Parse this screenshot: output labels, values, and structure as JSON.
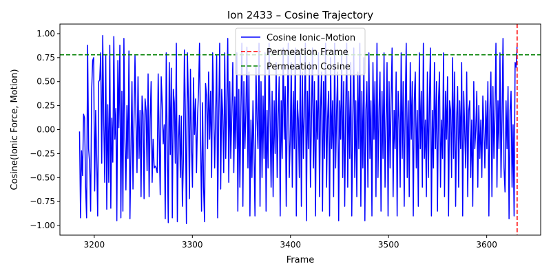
{
  "chart_data": {
    "type": "line",
    "title": "Ion 2433 – Cosine Trajectory",
    "xlabel": "Frame",
    "ylabel": "Cosine(Ionic Force, Motion)",
    "xlim": [
      3165,
      3655
    ],
    "ylim": [
      -1.1,
      1.1
    ],
    "x_ticks": [
      3200,
      3300,
      3400,
      3500,
      3600
    ],
    "y_ticks": [
      -1.0,
      -0.75,
      -0.5,
      -0.25,
      0.0,
      0.25,
      0.5,
      0.75,
      1.0
    ],
    "x_tick_labels": [
      "3200",
      "3300",
      "3400",
      "3500",
      "3600"
    ],
    "y_tick_labels": [
      "−1.00",
      "−0.75",
      "−0.50",
      "−0.25",
      "0.00",
      "0.25",
      "0.50",
      "0.75",
      "1.00"
    ],
    "grid": false,
    "legend_position": "upper center",
    "series": [
      {
        "name": "Cosine Ionic–Motion",
        "color": "#0000ff",
        "style": "solid",
        "x_start": 3185,
        "x_end": 3631,
        "values": [
          -0.02,
          -0.92,
          -0.22,
          -0.48,
          0.16,
          0.12,
          -0.6,
          -0.92,
          0.88,
          -0.2,
          -0.35,
          -0.85,
          0.4,
          0.72,
          0.75,
          -0.64,
          0.2,
          -0.3,
          -0.9,
          0.5,
          0.52,
          0.8,
          -0.35,
          0.98,
          0.1,
          -0.55,
          0.78,
          -0.83,
          0.26,
          -0.55,
          0.88,
          -0.82,
          0.12,
          -0.34,
          0.97,
          -0.1,
          0.22,
          -0.95,
          0.72,
          0.02,
          0.88,
          -0.92,
          0.4,
          -0.85,
          0.95,
          -0.1,
          -0.63,
          0.25,
          -0.3,
          0.82,
          -0.93,
          -0.2,
          0.5,
          -0.62,
          0.1,
          0.77,
          0.08,
          -0.45,
          0.55,
          -0.3,
          0.2,
          -0.7,
          0.35,
          0.15,
          -0.72,
          0.32,
          0.2,
          -0.43,
          0.58,
          -0.7,
          0.1,
          0.5,
          -0.55,
          -0.1,
          -0.4,
          -0.38,
          -0.4,
          -0.45,
          0.58,
          -0.1,
          -0.68,
          0.55,
          0.26,
          -0.15,
          0.05,
          -0.93,
          0.8,
          -0.2,
          -0.97,
          0.7,
          -0.26,
          0.64,
          -0.92,
          0.42,
          0.28,
          -0.35,
          0.9,
          -0.96,
          -0.12,
          0.15,
          -0.5,
          0.14,
          -0.8,
          -0.32,
          0.83,
          0.12,
          -0.98,
          0.8,
          0.28,
          -0.72,
          0.63,
          -0.15,
          -0.6,
          0.54,
          -0.05,
          0.32,
          -0.45,
          0.12,
          0.4,
          0.9,
          -0.1,
          -0.85,
          0.28,
          -0.6,
          -0.96,
          0.48,
          0.35,
          -0.2,
          0.6,
          -0.1,
          0.4,
          -0.5,
          0.8,
          0.3,
          -0.4,
          0.15,
          0.78,
          -0.92,
          0.12,
          0.9,
          -0.62,
          0.42,
          0.15,
          -0.45,
          0.8,
          -0.3,
          0.25,
          0.95,
          -0.55,
          0.5,
          -0.3,
          0.15,
          0.7,
          -0.45,
          0.34,
          -0.2,
          0.8,
          -0.85,
          0.42,
          -0.6,
          0.2,
          0.9,
          -0.8,
          0.5,
          -0.2,
          0.2,
          0.86,
          -0.4,
          0.6,
          -0.9,
          0.1,
          -0.5,
          0.3,
          -0.2,
          -0.9,
          0.65,
          0.1,
          -0.2,
          0.9,
          -0.8,
          0.5,
          -0.5,
          0.35,
          -0.3,
          0.8,
          -0.85,
          0.2,
          -0.4,
          0.9,
          0.1,
          -0.6,
          0.4,
          -0.7,
          0.3,
          -0.25,
          0.7,
          -0.5,
          0.1,
          0.55,
          -0.9,
          0.3,
          -0.3,
          0.85,
          -0.1,
          0.45,
          -0.8,
          0.2,
          0.9,
          -0.5,
          -0.1,
          0.7,
          -0.6,
          0.4,
          -0.2,
          0.85,
          -0.9,
          0.3,
          0.1,
          -0.5,
          0.8,
          -0.8,
          0.6,
          -0.3,
          0.2,
          0.9,
          -0.95,
          0.4,
          -0.2,
          0.7,
          -0.6,
          0.1,
          0.85,
          -0.4,
          0.5,
          -0.9,
          0.3,
          -0.1,
          0.8,
          -0.7,
          0.2,
          0.6,
          -0.85,
          0.5,
          -0.3,
          0.9,
          -0.6,
          0.1,
          0.4,
          -0.9,
          0.75,
          -0.2,
          0.3,
          -0.7,
          0.9,
          -0.4,
          0.2,
          0.6,
          -0.95,
          0.3,
          -0.1,
          0.8,
          -0.5,
          0.5,
          -0.8,
          0.2,
          0.9,
          -0.6,
          0.4,
          -0.3,
          0.7,
          -0.9,
          0.1,
          0.85,
          -0.5,
          0.3,
          -0.7,
          0.6,
          -0.2,
          0.9,
          -0.8,
          0.4,
          -0.4,
          0.75,
          -0.95,
          0.2,
          0.5,
          -0.6,
          0.8,
          -0.3,
          0.3,
          -0.9,
          0.7,
          -0.1,
          0.5,
          -0.7,
          0.9,
          -0.5,
          0.2,
          0.6,
          -0.85,
          0.4,
          -0.3,
          0.8,
          -0.6,
          0.1,
          0.7,
          -0.9,
          0.5,
          -0.4,
          0.3,
          0.85,
          -0.7,
          0.2,
          -0.2,
          0.6,
          -0.9,
          0.4,
          0.1,
          -0.6,
          0.8,
          -0.3,
          0.5,
          -0.8,
          0.2,
          0.9,
          -0.5,
          0.3,
          -0.7,
          0.7,
          -0.1,
          0.5,
          -0.9,
          0.3,
          0.6,
          -0.4,
          0.2,
          -0.8,
          0.8,
          -0.2,
          0.4,
          -0.6,
          0.9,
          -0.3,
          0.1,
          -0.7,
          0.6,
          -0.5,
          0.3,
          0.85,
          -0.9,
          0.2,
          -0.4,
          0.7,
          -0.2,
          0.5,
          -0.85,
          0.3,
          0.6,
          -0.6,
          0.1,
          -0.3,
          0.8,
          -0.7,
          0.4,
          -0.1,
          0.55,
          -0.9,
          0.3,
          0.2,
          -0.5,
          0.75,
          -0.3,
          0.6,
          -0.8,
          0.1,
          0.45,
          -0.6,
          0.3,
          -0.2,
          0.7,
          -0.9,
          0.4,
          0.0,
          -0.4,
          0.6,
          -0.7,
          0.2,
          0.3,
          -0.5,
          0.1,
          -0.8,
          0.5,
          -0.2,
          0.0,
          0.4,
          -0.6,
          0.25,
          -0.3,
          0.1,
          -0.5,
          0.35,
          0.0,
          -0.4,
          0.3,
          -0.2,
          0.5,
          -0.9,
          0.2,
          0.6,
          -0.7,
          0.45,
          -0.3,
          0.15,
          0.9,
          -0.6,
          0.3,
          -0.2,
          0.8,
          -0.5,
          0.1,
          0.95,
          -0.4,
          -0.65,
          0.3,
          -0.2,
          0.45,
          -0.93,
          0.2,
          0.4,
          -0.6,
          0.05,
          -0.9,
          0.7,
          0.65,
          0.88
        ]
      },
      {
        "name": "Permeation Frame",
        "color": "#ff0000",
        "style": "dashed",
        "x": 3631
      },
      {
        "name": "Permeation Cosine",
        "color": "#008000",
        "style": "dashed",
        "y": 0.78
      }
    ]
  }
}
